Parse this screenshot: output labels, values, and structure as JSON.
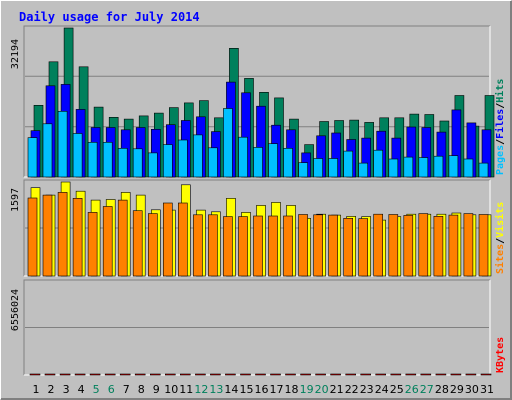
{
  "colors": {
    "background": "#c0c0c0",
    "plot": "#c0c0c0",
    "title": "#0000ff",
    "hits": "#00805c",
    "files": "#0000ff",
    "pages": "#00c0ff",
    "visits": "#ffff00",
    "sites": "#ff8000",
    "kbytes": "#ff0000",
    "weekend_day": "#00805c",
    "weekday": "#000000"
  },
  "chart_data": [
    {
      "type": "bar",
      "title": "Daily usage for July 2014",
      "panel": "hits-files-pages",
      "y_tick_label": "32194",
      "ylim": [
        0,
        32194
      ],
      "legend": [
        {
          "label": "Pages",
          "color": "#00c0ff"
        },
        {
          "sep": "/"
        },
        {
          "label": "Files",
          "color": "#0000ff"
        },
        {
          "sep": "/"
        },
        {
          "label": "Hits",
          "color": "#00805c"
        }
      ],
      "categories": [
        "1",
        "2",
        "3",
        "4",
        "5",
        "6",
        "7",
        "8",
        "9",
        "10",
        "11",
        "12",
        "13",
        "14",
        "15",
        "16",
        "17",
        "18",
        "19",
        "20",
        "21",
        "22",
        "23",
        "24",
        "25",
        "26",
        "27",
        "28",
        "29",
        "30",
        "31"
      ],
      "series": [
        {
          "name": "Hits",
          "values": [
            15500,
            24900,
            32194,
            23800,
            15100,
            12900,
            12500,
            13200,
            13800,
            15000,
            16000,
            16500,
            12800,
            27800,
            21300,
            18300,
            17100,
            12500,
            7000,
            12000,
            12200,
            12300,
            11800,
            12800,
            12800,
            13600,
            13500,
            12100,
            17600,
            11000,
            17600
          ]
        },
        {
          "name": "Files",
          "values": [
            10000,
            19700,
            20000,
            14600,
            10700,
            10700,
            10200,
            10700,
            10300,
            11300,
            12200,
            13000,
            9800,
            20500,
            18200,
            15300,
            11200,
            10200,
            5200,
            8900,
            9500,
            8100,
            8400,
            9900,
            8400,
            10800,
            10700,
            9700,
            14500,
            11700,
            10200
          ]
        },
        {
          "name": "Pages",
          "values": [
            8500,
            11500,
            14200,
            9400,
            7500,
            7500,
            6200,
            6100,
            5200,
            7000,
            8000,
            9100,
            6300,
            14800,
            8600,
            6400,
            7200,
            6200,
            3100,
            4000,
            4000,
            5600,
            3000,
            5800,
            3900,
            4300,
            4200,
            4500,
            4600,
            3900,
            3000
          ]
        }
      ]
    },
    {
      "type": "bar",
      "panel": "visits-sites",
      "y_tick_label": "1597",
      "ylim": [
        0,
        1597
      ],
      "legend": [
        {
          "label": "Sites",
          "color": "#ff8000"
        },
        {
          "sep": "/"
        },
        {
          "label": "Visits",
          "color": "#ffff00"
        }
      ],
      "categories": [
        "1",
        "2",
        "3",
        "4",
        "5",
        "6",
        "7",
        "8",
        "9",
        "10",
        "11",
        "12",
        "13",
        "14",
        "15",
        "16",
        "17",
        "18",
        "19",
        "20",
        "21",
        "22",
        "23",
        "24",
        "25",
        "26",
        "27",
        "28",
        "29",
        "30",
        "31"
      ],
      "series": [
        {
          "name": "Visits",
          "values": [
            1500,
            1375,
            1597,
            1440,
            1290,
            1300,
            1420,
            1375,
            1125,
            1120,
            1550,
            1120,
            1090,
            1320,
            1080,
            1200,
            1250,
            1200,
            980,
            1050,
            1035,
            1012,
            1010,
            950,
            1010,
            1050,
            1050,
            1050,
            1070,
            1040,
            1040
          ]
        },
        {
          "name": "Sites",
          "values": [
            1325,
            1375,
            1420,
            1320,
            1080,
            1180,
            1290,
            1110,
            1060,
            1240,
            1240,
            1040,
            1040,
            1010,
            1010,
            1020,
            1020,
            1020,
            1045,
            1040,
            1035,
            980,
            975,
            1050,
            1045,
            1030,
            1060,
            1015,
            1035,
            1060,
            1045
          ]
        }
      ]
    },
    {
      "type": "bar",
      "panel": "kbytes",
      "y_tick_label": "6556024",
      "ylim": [
        0,
        6556024
      ],
      "legend": [
        {
          "label": "KBytes",
          "color": "#ff0000"
        }
      ],
      "categories": [
        "1",
        "2",
        "3",
        "4",
        "5",
        "6",
        "7",
        "8",
        "9",
        "10",
        "11",
        "12",
        "13",
        "14",
        "15",
        "16",
        "17",
        "18",
        "19",
        "20",
        "21",
        "22",
        "23",
        "24",
        "25",
        "26",
        "27",
        "28",
        "29",
        "30",
        "31"
      ],
      "series": [
        {
          "name": "KBytes",
          "values": [
            2750,
            3130,
            2620,
            2070,
            1360,
            1570,
            1380,
            930,
            1220,
            2520,
            3180,
            1310,
            1450,
            2160,
            2070,
            3130,
            1400,
            1400,
            770,
            5340,
            3550,
            1130,
            5630,
            700,
            3350,
            6556,
            5340,
            4240,
            4620,
            3460,
            4390
          ]
        }
      ]
    }
  ]
}
